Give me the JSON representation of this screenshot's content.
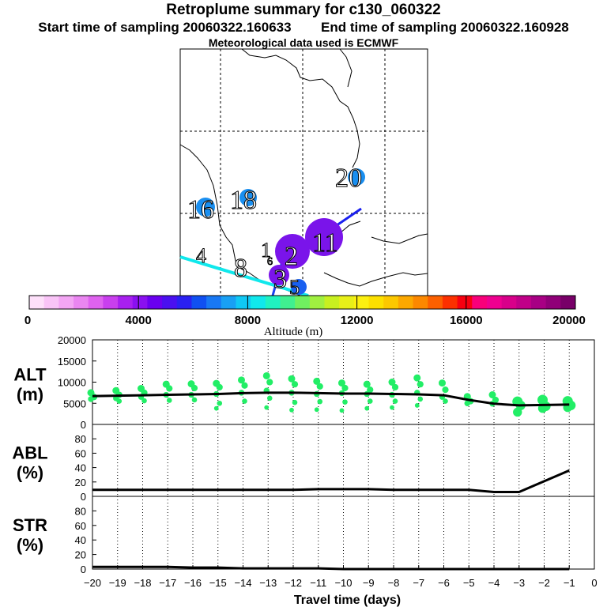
{
  "header": {
    "title": "Retroplume summary for c130_060322",
    "start_label": "Start time of sampling 20060322.160633",
    "end_label": "End time of sampling 20060322.160928",
    "met_label": "Meteorological data used is ECMWF"
  },
  "colors": {
    "altitude_dots": "#22ee66",
    "median_line": "#000000",
    "colorbar": [
      "#fde0fa",
      "#f9c4f7",
      "#f3a6f4",
      "#ea86f1",
      "#df62ef",
      "#c93fee",
      "#a820ef",
      "#8a10f0",
      "#6a00f0",
      "#4a10f0",
      "#2a20f2",
      "#1050f2",
      "#1878f4",
      "#18a0f4",
      "#10c8f4",
      "#10e8ec",
      "#20f2c0",
      "#40f090",
      "#70f060",
      "#a0f040",
      "#c8f020",
      "#e8f018",
      "#fcf010",
      "#fce000",
      "#fcc800",
      "#fca800",
      "#fc8800",
      "#fc6000",
      "#fc3000",
      "#f80010",
      "#f8007a",
      "#ee0090",
      "#d8008a",
      "#c00088",
      "#a80084",
      "#900078",
      "#780068"
    ]
  },
  "map": {
    "clusters": [
      {
        "label": "20",
        "color": "#1a8ff0",
        "size": "small"
      },
      {
        "label": "16",
        "color": "#1a8ff0",
        "size": "small"
      },
      {
        "label": "18",
        "color": "#1a8ff0",
        "size": "small"
      },
      {
        "label": "11",
        "color": "#7a14ea",
        "size": "large"
      },
      {
        "label": "2",
        "color": "#7a14ea",
        "size": "large"
      },
      {
        "label": "1",
        "color": "#7a14ea",
        "size": "small"
      },
      {
        "label": "3",
        "color": "#7a14ea",
        "size": "large"
      },
      {
        "label": "4",
        "color": "#10e8ec",
        "size": "small"
      },
      {
        "label": "8",
        "color": "#10e8ec",
        "size": "small"
      },
      {
        "label": "5",
        "color": "#1a8ff0",
        "size": "small"
      },
      {
        "label": "6",
        "color": "#7a14ea",
        "size": "small"
      }
    ],
    "colorbar": {
      "ticks": [
        "0",
        "4000",
        "8000",
        "12000",
        "16000",
        "20000"
      ],
      "label": "Altitude (m)"
    }
  },
  "chart_data": [
    {
      "type": "scatter",
      "name": "ALT",
      "ylabel_lines": [
        "ALT",
        "(m)"
      ],
      "ylim": [
        0,
        20000
      ],
      "yticks": [
        "0",
        "5000",
        "10000",
        "15000",
        "20000"
      ],
      "xlim": [
        -20,
        0
      ],
      "x_days": [
        -20,
        -19,
        -18,
        -17,
        -16,
        -15,
        -14,
        -13,
        -12,
        -11,
        -10,
        -9,
        -8,
        -7,
        -6,
        -5,
        -4,
        -3,
        -2,
        -1
      ],
      "median": [
        6700,
        6800,
        6900,
        7000,
        7100,
        7200,
        7400,
        7500,
        7500,
        7400,
        7300,
        7300,
        7200,
        7100,
        6900,
        5800,
        4900,
        4500,
        4600,
        4700
      ],
      "dots": [
        [
          7500,
          6500,
          6000
        ],
        [
          8000,
          7000,
          6200,
          5500
        ],
        [
          8500,
          7500,
          6500,
          5600
        ],
        [
          9500,
          8500,
          7000,
          5700
        ],
        [
          9600,
          8600,
          7000,
          5800
        ],
        [
          9700,
          8800,
          7200,
          5000,
          3800
        ],
        [
          10500,
          9200,
          7500,
          5500
        ],
        [
          11500,
          10000,
          8000,
          6200,
          4000
        ],
        [
          10800,
          9500,
          7500,
          5200,
          3400
        ],
        [
          10200,
          9000,
          7200,
          5400,
          3500
        ],
        [
          9800,
          8600,
          7400,
          5300,
          3300
        ],
        [
          9500,
          8200,
          7200,
          5500,
          3800
        ],
        [
          10000,
          8800,
          7000,
          5500,
          4000
        ],
        [
          11000,
          9500,
          7500,
          6000,
          4500
        ],
        [
          9800,
          8200,
          6500,
          5500
        ],
        [
          6600,
          5500,
          5000
        ],
        [
          7000,
          5800,
          4900
        ],
        [
          5400,
          4500,
          2900
        ],
        [
          5800,
          4300,
          3800
        ],
        [
          5500,
          4500,
          4000
        ]
      ]
    },
    {
      "type": "line",
      "name": "ABL",
      "ylabel_lines": [
        "ABL",
        "(%)"
      ],
      "ylim": [
        0,
        100
      ],
      "yticks": [
        "0",
        "20",
        "40",
        "60",
        "80"
      ],
      "xlim": [
        -20,
        0
      ],
      "x": [
        -20,
        -19,
        -18,
        -17,
        -16,
        -15,
        -14,
        -13,
        -12,
        -11,
        -10,
        -9,
        -8,
        -7,
        -6,
        -5,
        -4,
        -3,
        -2,
        -1
      ],
      "values": [
        9,
        9,
        9,
        9,
        9,
        9,
        9,
        9,
        9,
        10,
        10,
        10,
        9,
        9,
        9,
        9,
        6,
        6,
        21,
        36
      ]
    },
    {
      "type": "line",
      "name": "STR",
      "ylabel_lines": [
        "STR",
        "(%)"
      ],
      "ylim": [
        0,
        100
      ],
      "yticks": [
        "0",
        "20",
        "40",
        "60",
        "80"
      ],
      "xlim": [
        -20,
        0
      ],
      "x": [
        -20,
        -19,
        -18,
        -17,
        -16,
        -15,
        -14,
        -13,
        -12,
        -11,
        -10,
        -9,
        -8,
        -7,
        -6,
        -5,
        -4,
        -3,
        -2,
        -1
      ],
      "values": [
        3,
        3,
        3,
        3,
        2,
        2,
        1,
        1,
        1,
        1,
        0,
        0,
        0,
        0,
        0,
        0,
        0,
        0,
        0,
        0
      ],
      "xticks": [
        "-20",
        "-19",
        "-18",
        "-17",
        "-16",
        "-15",
        "-14",
        "-13",
        "-12",
        "-11",
        "-10",
        "-9",
        "-8",
        "-7",
        "-6",
        "-5",
        "-4",
        "-3",
        "-2",
        "-1",
        "0"
      ],
      "xlabel": "Travel time (days)"
    }
  ]
}
